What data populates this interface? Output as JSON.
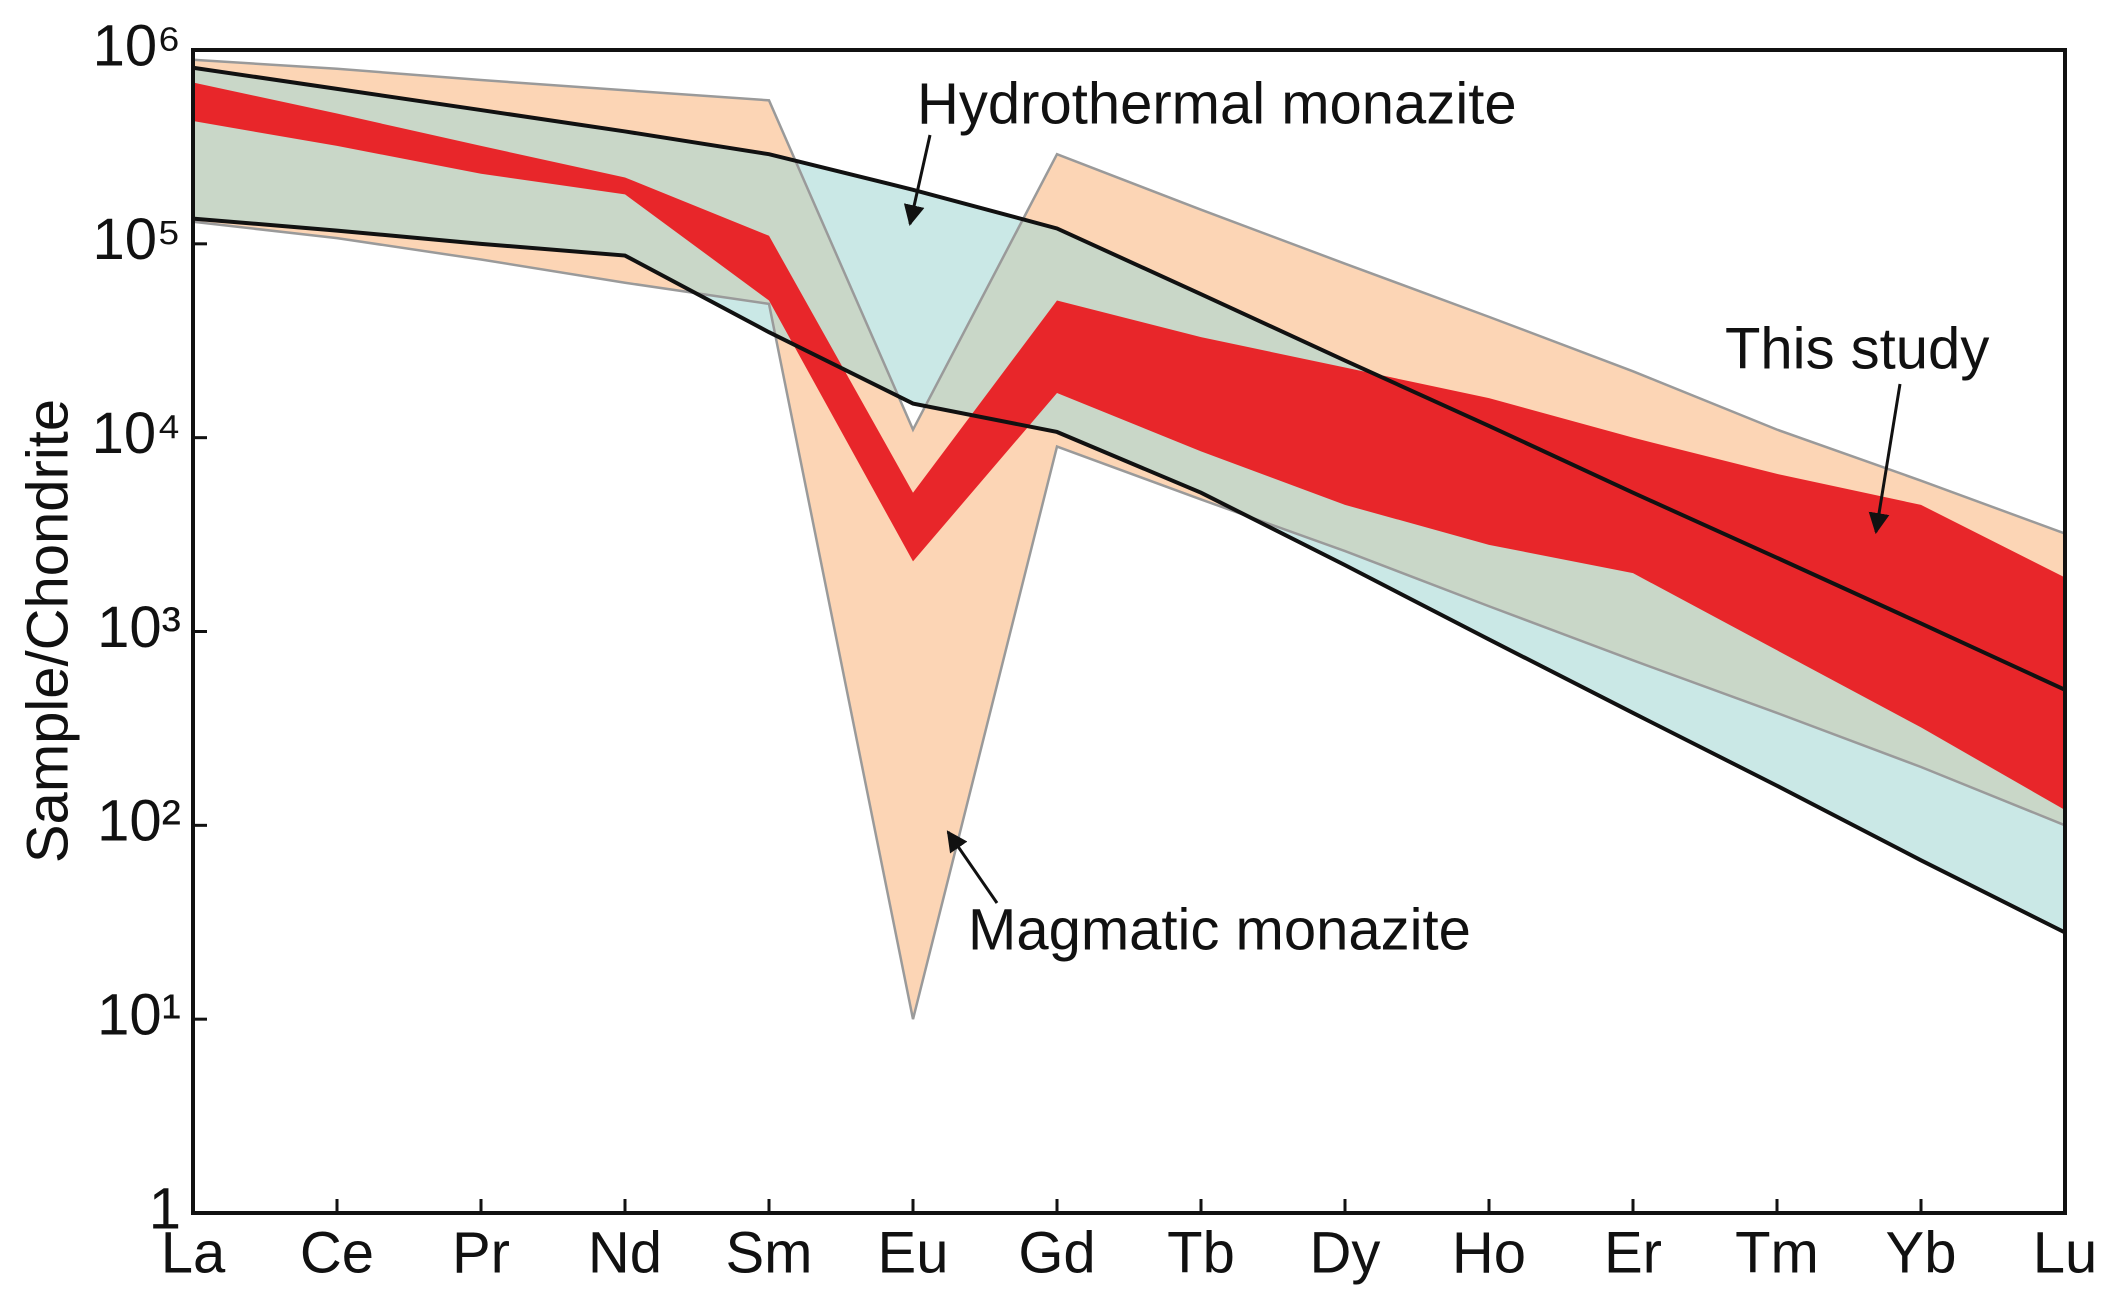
{
  "chart_data": {
    "type": "range",
    "y_label": "Sample/Chondrite",
    "categories": [
      "La",
      "Ce",
      "Pr",
      "Nd",
      "Sm",
      "Eu",
      "Gd",
      "Tb",
      "Dy",
      "Ho",
      "Er",
      "Tm",
      "Yb",
      "Lu"
    ],
    "log_y": true,
    "ylim": [
      1,
      1000000
    ],
    "yticks": [
      1,
      {
        "value": 10,
        "label": "10¹"
      },
      {
        "value": 100,
        "label": "10²"
      },
      {
        "value": 1000,
        "label": "10³"
      },
      {
        "value": 10000,
        "label": "10⁴"
      },
      {
        "value": 100000,
        "label": "10⁵"
      },
      {
        "value": 1000000,
        "label": "10⁶"
      }
    ],
    "series": [
      {
        "name": "Magmatic monazite",
        "color": "#fcd5b5",
        "edge_color": "#9a9a9a",
        "upper": [
          890000,
          800000,
          700000,
          620000,
          550000,
          11000,
          290000,
          150000,
          79000,
          42000,
          22000,
          11000,
          6000,
          3200
        ],
        "lower": [
          130000,
          107000,
          83000,
          63000,
          49000,
          10,
          9000,
          4800,
          2600,
          1350,
          710,
          380,
          200,
          100
        ]
      },
      {
        "name": "Hydrothermal monazite",
        "color": "#a6d8d6",
        "edge_color": "#111111",
        "upper": [
          810000,
          630000,
          490000,
          380000,
          290000,
          190000,
          120000,
          55000,
          25000,
          11500,
          5200,
          2400,
          1100,
          500
        ],
        "lower": [
          135000,
          117000,
          100000,
          87000,
          35000,
          15000,
          10700,
          5200,
          2200,
          910,
          380,
          160,
          66,
          28
        ]
      },
      {
        "name": "This study",
        "color": "#e8262a",
        "upper": [
          680000,
          470000,
          320000,
          220000,
          110000,
          5200,
          51000,
          33000,
          23000,
          16000,
          10000,
          6500,
          4500,
          1900
        ],
        "lower": [
          430000,
          320000,
          230000,
          180000,
          51000,
          2300,
          17000,
          8500,
          4500,
          2800,
          2000,
          800,
          320,
          120
        ]
      }
    ]
  }
}
